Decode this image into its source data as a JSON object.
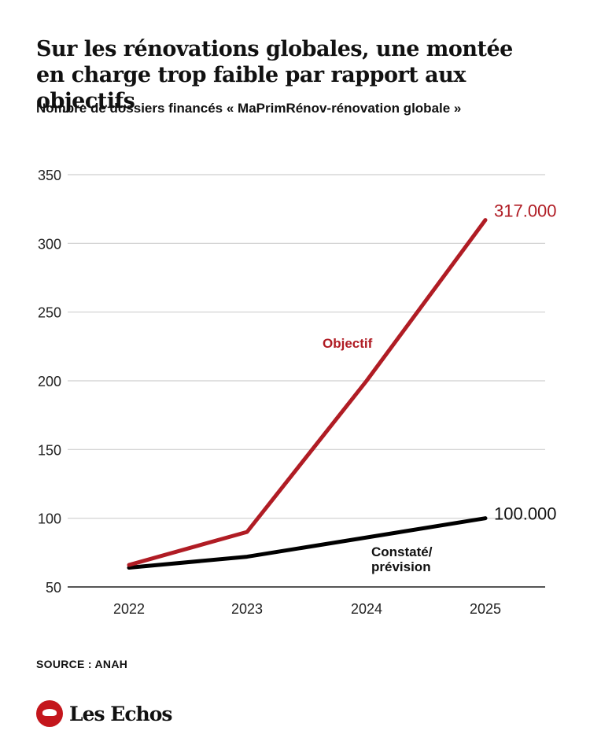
{
  "header": {
    "title_line1": "Sur les rénovations globales, une montée",
    "title_line2": "en charge trop faible par rapport aux objectifs",
    "subtitle": "Nombre de dossiers financés « MaPrimRénov-rénovation globale »"
  },
  "footer": {
    "source": "SOURCE : ANAH",
    "logo_text": "Les Echos",
    "logo_icon": "les-echos-pegasus-icon"
  },
  "chart_data": {
    "type": "line",
    "title": "Sur les rénovations globales, une montée en charge trop faible par rapport aux objectifs",
    "subtitle": "Nombre de dossiers financés « MaPrimRénov-rénovation globale »",
    "xlabel": "",
    "ylabel": "",
    "x": [
      "2022",
      "2023",
      "2024",
      "2025"
    ],
    "ylim": [
      50,
      350
    ],
    "yticks": [
      50,
      100,
      150,
      200,
      250,
      300,
      350
    ],
    "ytick_labels": [
      "50",
      "100",
      "150",
      "200",
      "250",
      "300",
      "350"
    ],
    "grid": true,
    "series": [
      {
        "name": "Objectif",
        "color": "#b01c24",
        "values": [
          66,
          90,
          200,
          317
        ],
        "end_label": "317.000",
        "label": "Objectif"
      },
      {
        "name": "Constaté/prévision",
        "color": "#000000",
        "values": [
          64,
          72,
          86,
          100
        ],
        "end_label": "100.000",
        "label_line1": "Constaté/",
        "label_line2": "prévision"
      }
    ],
    "units": "milliers de dossiers"
  }
}
